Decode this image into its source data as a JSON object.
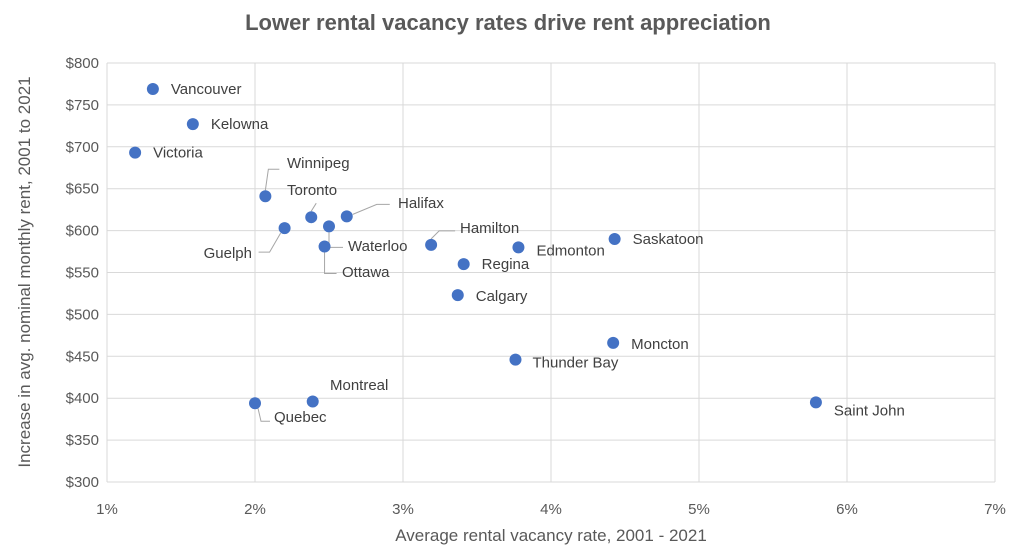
{
  "chart_data": {
    "type": "scatter",
    "title": "Lower rental vacancy rates drive rent appreciation",
    "xlabel": "Average rental vacancy rate, 2001 - 2021",
    "ylabel": "Increase in avg. nominal monthly rent, 2001 to 2021",
    "xlim": [
      1,
      7
    ],
    "ylim": [
      300,
      800
    ],
    "x_ticks": [
      "1%",
      "2%",
      "3%",
      "4%",
      "5%",
      "6%",
      "7%"
    ],
    "y_ticks": [
      "$300",
      "$350",
      "$400",
      "$450",
      "$500",
      "$550",
      "$600",
      "$650",
      "$700",
      "$750",
      "$800"
    ],
    "grid": true,
    "legend": "none",
    "marker_color": "#4472c4",
    "points": [
      {
        "label": "Vancouver",
        "x": 1.31,
        "y": 769
      },
      {
        "label": "Kelowna",
        "x": 1.58,
        "y": 727
      },
      {
        "label": "Victoria",
        "x": 1.19,
        "y": 693
      },
      {
        "label": "Winnipeg",
        "x": 2.07,
        "y": 641
      },
      {
        "label": "Toronto",
        "x": 2.38,
        "y": 616
      },
      {
        "label": "Halifax",
        "x": 2.62,
        "y": 617
      },
      {
        "label": "Guelph",
        "x": 2.2,
        "y": 603
      },
      {
        "label": "Waterloo",
        "x": 2.5,
        "y": 605
      },
      {
        "label": "Ottawa",
        "x": 2.47,
        "y": 581
      },
      {
        "label": "Hamilton",
        "x": 3.19,
        "y": 583
      },
      {
        "label": "Edmonton",
        "x": 3.78,
        "y": 580
      },
      {
        "label": "Saskatoon",
        "x": 4.43,
        "y": 590
      },
      {
        "label": "Regina",
        "x": 3.41,
        "y": 560
      },
      {
        "label": "Calgary",
        "x": 3.37,
        "y": 523
      },
      {
        "label": "Moncton",
        "x": 4.42,
        "y": 466
      },
      {
        "label": "Thunder Bay",
        "x": 3.76,
        "y": 446
      },
      {
        "label": "Montreal",
        "x": 2.39,
        "y": 396
      },
      {
        "label": "Quebec",
        "x": 2.0,
        "y": 394
      },
      {
        "label": "Saint John",
        "x": 5.79,
        "y": 395
      }
    ]
  }
}
